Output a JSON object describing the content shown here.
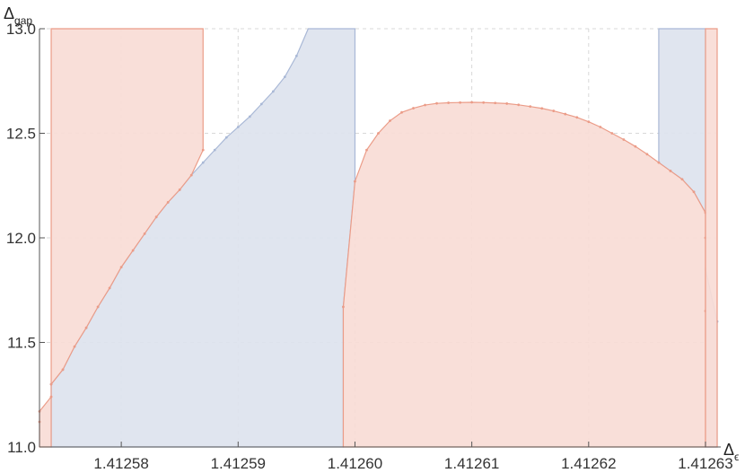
{
  "chart_data": {
    "type": "area",
    "xlabel": "Δ",
    "xlabel_sub": "ϵ",
    "ylabel": "Δ",
    "ylabel_sub": "gap",
    "xlim": [
      1.412573,
      1.412631
    ],
    "ylim": [
      11.0,
      13.0
    ],
    "x_ticks": [
      1.41258,
      1.41259,
      1.4126,
      1.41261,
      1.41262,
      1.41263
    ],
    "x_tick_labels": [
      "1.41258",
      "1.41259",
      "1.41260",
      "1.41261",
      "1.41262",
      "1.41263"
    ],
    "y_ticks": [
      11.0,
      11.5,
      12.0,
      12.5,
      13.0
    ],
    "y_tick_labels": [
      "11.0",
      "11.5",
      "12.0",
      "12.5",
      "13.0"
    ],
    "grid": true,
    "colors": {
      "blue_fill": "#dde3ee",
      "blue_line": "#a9b8d6",
      "red_fill": "#f9dcd6",
      "red_line": "#eb9c88"
    },
    "series": [
      {
        "color": "blue",
        "points": [
          [
            1.412574,
            11.0
          ],
          [
            1.412574,
            11.3
          ],
          [
            1.412575,
            11.37
          ],
          [
            1.412576,
            11.48
          ],
          [
            1.412577,
            11.57
          ],
          [
            1.412578,
            11.67
          ],
          [
            1.412579,
            11.76
          ],
          [
            1.41258,
            11.86
          ],
          [
            1.412581,
            11.94
          ],
          [
            1.412582,
            12.02
          ],
          [
            1.412583,
            12.1
          ],
          [
            1.412584,
            12.17
          ],
          [
            1.412585,
            12.23
          ],
          [
            1.412586,
            12.3
          ],
          [
            1.412587,
            12.36
          ],
          [
            1.412588,
            12.42
          ],
          [
            1.412589,
            12.48
          ],
          [
            1.41259,
            12.53
          ],
          [
            1.412591,
            12.58
          ],
          [
            1.412592,
            12.64
          ],
          [
            1.412593,
            12.7
          ],
          [
            1.412594,
            12.77
          ],
          [
            1.412595,
            12.87
          ],
          [
            1.412596,
            13.0
          ],
          [
            1.4126,
            13.0
          ],
          [
            1.4126,
            12.27
          ],
          [
            1.412599,
            11.67
          ],
          [
            1.412599,
            11.0
          ]
        ]
      },
      {
        "color": "blue",
        "points": [
          [
            1.412626,
            13.0
          ],
          [
            1.41263,
            13.0
          ],
          [
            1.41263,
            12.0
          ],
          [
            1.41263,
            11.85
          ],
          [
            1.412631,
            11.6
          ],
          [
            1.412631,
            11.0
          ],
          [
            1.41263,
            11.0
          ],
          [
            1.41263,
            11.65
          ],
          [
            1.41263,
            12.0
          ],
          [
            1.41263,
            12.12
          ],
          [
            1.412629,
            12.22
          ],
          [
            1.412628,
            12.28
          ],
          [
            1.412627,
            12.32
          ],
          [
            1.412626,
            12.36
          ]
        ]
      },
      {
        "color": "red",
        "points": [
          [
            1.412573,
            11.0
          ],
          [
            1.412573,
            11.12
          ],
          [
            1.412573,
            11.17
          ],
          [
            1.412574,
            11.24
          ],
          [
            1.412574,
            13.0
          ],
          [
            1.412587,
            13.0
          ],
          [
            1.412587,
            12.42
          ],
          [
            1.412586,
            12.3
          ],
          [
            1.412585,
            12.23
          ],
          [
            1.412584,
            12.17
          ],
          [
            1.412583,
            12.1
          ],
          [
            1.412582,
            12.02
          ],
          [
            1.412581,
            11.94
          ],
          [
            1.41258,
            11.86
          ],
          [
            1.412579,
            11.76
          ],
          [
            1.412578,
            11.67
          ],
          [
            1.412577,
            11.57
          ],
          [
            1.412576,
            11.48
          ],
          [
            1.412575,
            11.37
          ],
          [
            1.412574,
            11.3
          ],
          [
            1.412574,
            11.0
          ]
        ]
      },
      {
        "color": "red",
        "points": [
          [
            1.412599,
            11.0
          ],
          [
            1.412599,
            11.67
          ],
          [
            1.4126,
            12.27
          ],
          [
            1.412601,
            12.42
          ],
          [
            1.412602,
            12.5
          ],
          [
            1.412603,
            12.56
          ],
          [
            1.412604,
            12.6
          ],
          [
            1.412605,
            12.62
          ],
          [
            1.412606,
            12.635
          ],
          [
            1.412607,
            12.643
          ],
          [
            1.412608,
            12.646
          ],
          [
            1.412609,
            12.647
          ],
          [
            1.41261,
            12.648
          ],
          [
            1.412611,
            12.647
          ],
          [
            1.412612,
            12.645
          ],
          [
            1.412613,
            12.642
          ],
          [
            1.412614,
            12.636
          ],
          [
            1.412615,
            12.628
          ],
          [
            1.412616,
            12.619
          ],
          [
            1.412617,
            12.607
          ],
          [
            1.412618,
            12.592
          ],
          [
            1.412619,
            12.576
          ],
          [
            1.41262,
            12.555
          ],
          [
            1.412621,
            12.53
          ],
          [
            1.412622,
            12.5
          ],
          [
            1.412623,
            12.47
          ],
          [
            1.412624,
            12.437
          ],
          [
            1.412625,
            12.4
          ],
          [
            1.412626,
            12.36
          ],
          [
            1.412627,
            12.32
          ],
          [
            1.412628,
            12.28
          ],
          [
            1.412629,
            12.22
          ],
          [
            1.41263,
            12.12
          ],
          [
            1.41263,
            12.0
          ],
          [
            1.41263,
            11.65
          ],
          [
            1.41263,
            11.0
          ]
        ]
      },
      {
        "color": "red",
        "points": [
          [
            1.41263,
            11.0
          ],
          [
            1.41263,
            13.0
          ],
          [
            1.412631,
            13.0
          ],
          [
            1.412631,
            11.0
          ]
        ]
      }
    ]
  }
}
